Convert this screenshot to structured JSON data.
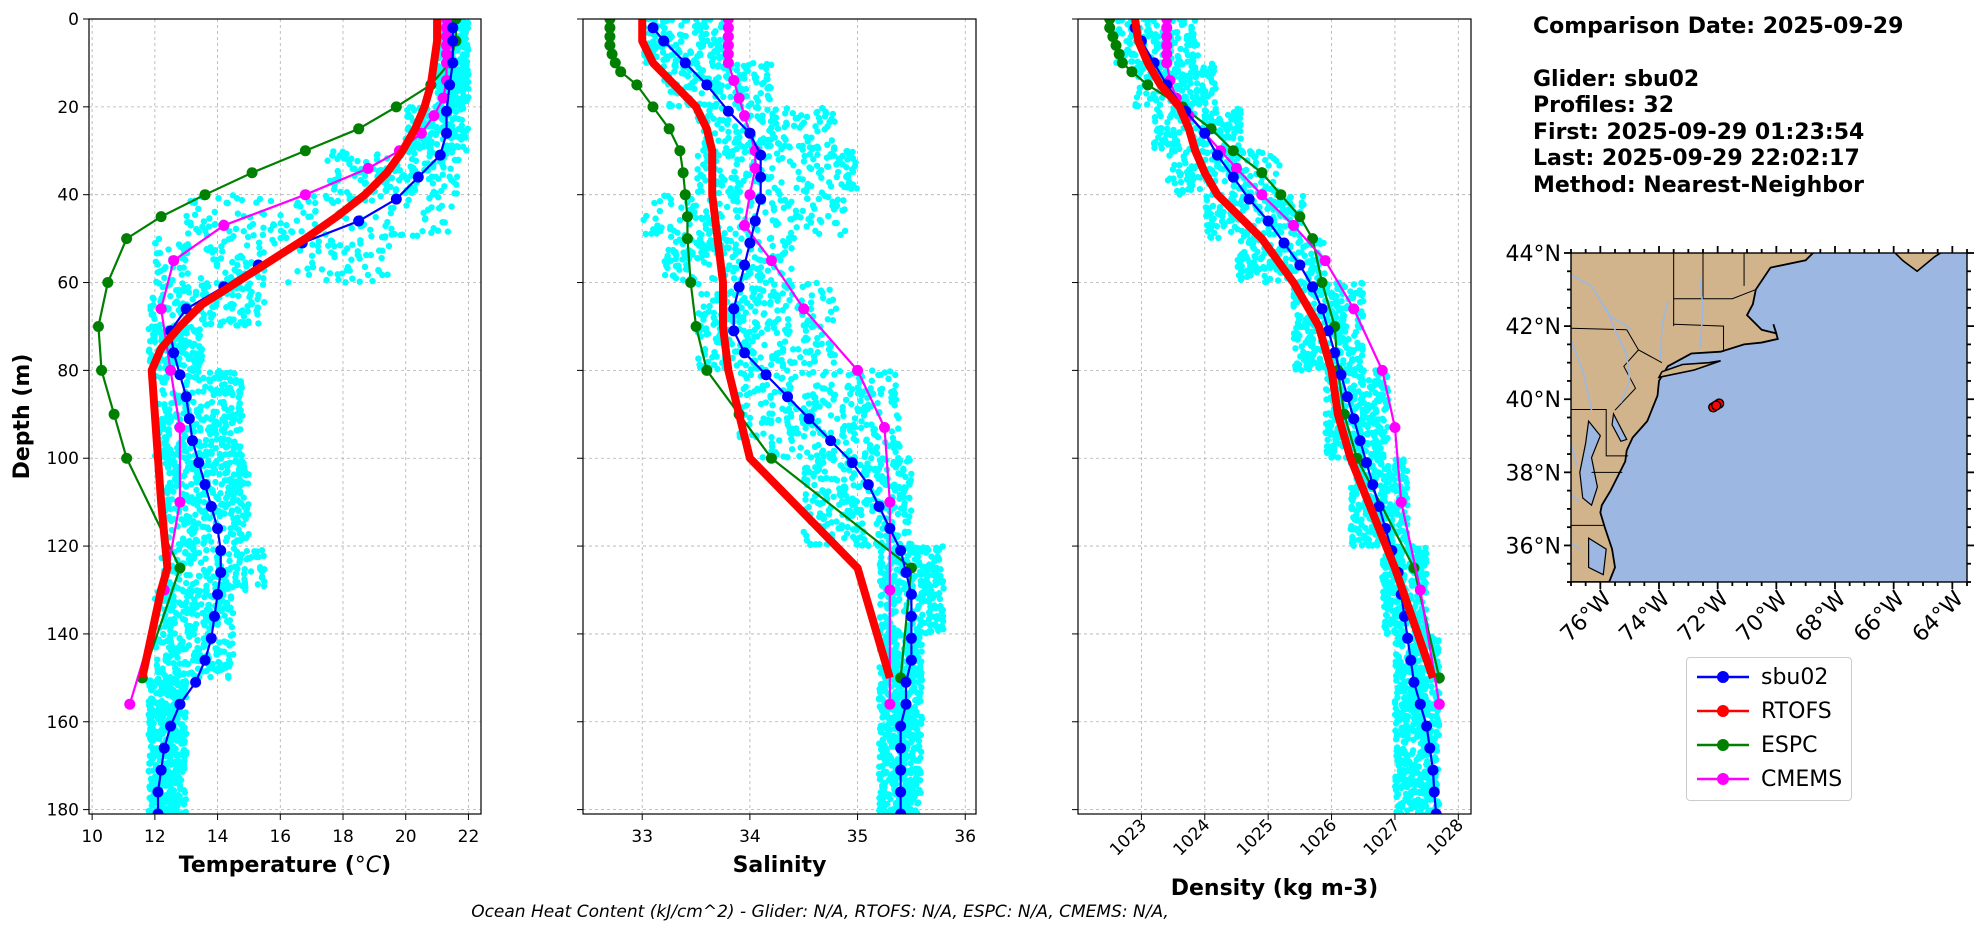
{
  "colors": {
    "glider_obs": "#00ffff",
    "sbu02": "#0000ff",
    "RTOFS": "#ff0000",
    "ESPC": "#008000",
    "CMEMS": "#ff00ff",
    "land": "#d2b48c",
    "ocean": "#9cb8e2"
  },
  "info": {
    "comparison_date": "Comparison Date: 2025-09-29",
    "glider": "Glider: sbu02",
    "profiles": "Profiles: 32",
    "first": "First: 2025-09-29 01:23:54",
    "last": "Last: 2025-09-29 22:02:17",
    "method": "Method: Nearest-Neighbor"
  },
  "footer": "Ocean Heat Content (kJ/cm^2) - Glider: N/A,  RTOFS: N/A,  ESPC: N/A,  CMEMS: N/A,",
  "legend": [
    {
      "name": "sbu02",
      "color": "#0000ff"
    },
    {
      "name": "RTOFS",
      "color": "#ff0000"
    },
    {
      "name": "ESPC",
      "color": "#008000"
    },
    {
      "name": "CMEMS",
      "color": "#ff00ff"
    }
  ],
  "chart_data": [
    {
      "type": "line",
      "xlabel": "Temperature (°C)",
      "ylabel": "Depth (m)",
      "xlim": [
        9.9,
        22.4
      ],
      "ylim": [
        181,
        0
      ],
      "xticks": [
        10,
        12,
        14,
        16,
        18,
        20,
        22
      ],
      "yticks": [
        0,
        20,
        40,
        60,
        80,
        100,
        120,
        140,
        160,
        180
      ],
      "grid": true,
      "scatter_cloud_ranges": [
        [
          0,
          20,
          21.0,
          22.0
        ],
        [
          20,
          30,
          20.0,
          22.0
        ],
        [
          30,
          40,
          17.5,
          21.8
        ],
        [
          40,
          50,
          13.0,
          21.5
        ],
        [
          50,
          60,
          12.0,
          19.5
        ],
        [
          60,
          70,
          11.8,
          15.5
        ],
        [
          70,
          80,
          11.8,
          13.5
        ],
        [
          80,
          100,
          12.0,
          14.8
        ],
        [
          100,
          120,
          12.3,
          15.0
        ],
        [
          120,
          130,
          12.2,
          15.5
        ],
        [
          130,
          150,
          12.0,
          14.5
        ],
        [
          150,
          182,
          11.8,
          13.0
        ]
      ],
      "series": [
        {
          "name": "sbu02",
          "depth": [
            2,
            5,
            10,
            15,
            21,
            26,
            31,
            36,
            41,
            46,
            51,
            56,
            61,
            66,
            71,
            76,
            81,
            86,
            91,
            96,
            101,
            106,
            111,
            116,
            121,
            126,
            131,
            136,
            141,
            146,
            151,
            156,
            161,
            166,
            171,
            176,
            181
          ],
          "values": [
            21.5,
            21.5,
            21.5,
            21.4,
            21.3,
            21.3,
            21.1,
            20.4,
            19.7,
            18.5,
            16.7,
            15.3,
            14.2,
            13.0,
            12.5,
            12.6,
            12.8,
            13.0,
            13.1,
            13.2,
            13.4,
            13.6,
            13.8,
            14.0,
            14.1,
            14.1,
            14.0,
            13.9,
            13.8,
            13.6,
            13.3,
            12.8,
            12.5,
            12.3,
            12.2,
            12.1,
            12.1
          ]
        },
        {
          "name": "RTOFS",
          "depth": [
            0,
            5,
            10,
            15,
            20,
            25,
            30,
            35,
            40,
            45,
            50,
            55,
            60,
            65,
            70,
            75,
            80,
            90,
            100,
            110,
            125,
            130,
            150
          ],
          "values": [
            21.0,
            21.0,
            20.9,
            20.8,
            20.6,
            20.3,
            19.9,
            19.4,
            18.7,
            17.8,
            16.8,
            15.7,
            14.6,
            13.5,
            12.8,
            12.2,
            11.9,
            12.0,
            12.1,
            12.2,
            12.4,
            12.2,
            11.6
          ]
        },
        {
          "name": "ESPC",
          "depth": [
            0,
            5,
            10,
            15,
            20,
            25,
            30,
            35,
            40,
            45,
            50,
            60,
            70,
            80,
            90,
            100,
            125,
            150
          ],
          "values": [
            21.6,
            21.6,
            21.4,
            20.8,
            19.7,
            18.5,
            16.8,
            15.1,
            13.6,
            12.2,
            11.1,
            10.5,
            10.2,
            10.3,
            10.7,
            11.1,
            12.8,
            11.6
          ]
        },
        {
          "name": "CMEMS",
          "depth": [
            0,
            2,
            4,
            6,
            8,
            10,
            14,
            18,
            22,
            26,
            30,
            34,
            40,
            47,
            55,
            66,
            80,
            93,
            110,
            130,
            156
          ],
          "values": [
            21.3,
            21.3,
            21.3,
            21.3,
            21.3,
            21.3,
            21.3,
            21.2,
            20.9,
            20.5,
            19.8,
            18.8,
            16.8,
            14.2,
            12.6,
            12.2,
            12.5,
            12.8,
            12.8,
            12.3,
            11.2
          ]
        }
      ]
    },
    {
      "type": "line",
      "xlabel": "Salinity",
      "xlim": [
        32.45,
        36.1
      ],
      "ylim": [
        181,
        0
      ],
      "xticks": [
        33,
        34,
        35,
        36
      ],
      "grid": true,
      "scatter_cloud_ranges": [
        [
          0,
          10,
          33.0,
          33.8
        ],
        [
          10,
          20,
          33.2,
          34.2
        ],
        [
          20,
          30,
          33.5,
          34.8
        ],
        [
          30,
          40,
          33.5,
          35.0
        ],
        [
          40,
          50,
          33.0,
          34.9
        ],
        [
          50,
          60,
          33.2,
          34.4
        ],
        [
          60,
          80,
          33.5,
          34.8
        ],
        [
          80,
          100,
          33.9,
          35.4
        ],
        [
          100,
          120,
          34.5,
          35.5
        ],
        [
          120,
          140,
          35.2,
          35.8
        ],
        [
          140,
          182,
          35.2,
          35.6
        ]
      ],
      "series": [
        {
          "name": "sbu02",
          "depth": [
            2,
            5,
            10,
            15,
            21,
            26,
            31,
            36,
            41,
            46,
            51,
            56,
            61,
            66,
            71,
            76,
            81,
            86,
            91,
            96,
            101,
            106,
            111,
            116,
            121,
            126,
            131,
            136,
            141,
            146,
            151,
            156,
            161,
            166,
            171,
            176,
            181
          ],
          "values": [
            33.1,
            33.2,
            33.4,
            33.6,
            33.8,
            34.0,
            34.1,
            34.1,
            34.1,
            34.05,
            34.0,
            33.95,
            33.9,
            33.85,
            33.85,
            33.95,
            34.15,
            34.35,
            34.55,
            34.75,
            34.95,
            35.1,
            35.2,
            35.3,
            35.4,
            35.45,
            35.5,
            35.5,
            35.5,
            35.5,
            35.45,
            35.45,
            35.4,
            35.4,
            35.4,
            35.4,
            35.4
          ]
        },
        {
          "name": "RTOFS",
          "depth": [
            0,
            5,
            10,
            15,
            20,
            25,
            30,
            35,
            40,
            50,
            60,
            70,
            80,
            90,
            100,
            125,
            150
          ],
          "values": [
            33.0,
            33.0,
            33.1,
            33.3,
            33.5,
            33.6,
            33.65,
            33.65,
            33.65,
            33.7,
            33.75,
            33.75,
            33.8,
            33.9,
            34.0,
            35.0,
            35.3
          ]
        },
        {
          "name": "ESPC",
          "depth": [
            0,
            2,
            4,
            6,
            8,
            10,
            12,
            15,
            20,
            25,
            30,
            35,
            40,
            45,
            50,
            60,
            70,
            80,
            90,
            100,
            125,
            150
          ],
          "values": [
            32.7,
            32.7,
            32.7,
            32.7,
            32.72,
            32.75,
            32.8,
            32.95,
            33.1,
            33.25,
            33.35,
            33.38,
            33.4,
            33.42,
            33.42,
            33.45,
            33.5,
            33.6,
            33.9,
            34.2,
            35.5,
            35.4
          ]
        },
        {
          "name": "CMEMS",
          "depth": [
            0,
            2,
            4,
            6,
            8,
            10,
            14,
            18,
            22,
            26,
            30,
            34,
            40,
            47,
            55,
            66,
            80,
            93,
            110,
            130,
            156
          ],
          "values": [
            33.8,
            33.8,
            33.8,
            33.8,
            33.8,
            33.8,
            33.85,
            33.9,
            33.95,
            34.0,
            34.05,
            34.05,
            34.0,
            33.95,
            34.2,
            34.5,
            35.0,
            35.25,
            35.3,
            35.3,
            35.3
          ]
        }
      ]
    },
    {
      "type": "line",
      "xlabel": "Density (kg m-3)",
      "xlim": [
        1022.0,
        1028.2
      ],
      "ylim": [
        181,
        0
      ],
      "xticks": [
        1023,
        1024,
        1025,
        1026,
        1027,
        1028
      ],
      "grid": true,
      "scatter_cloud_ranges": [
        [
          0,
          10,
          1022.6,
          1023.9
        ],
        [
          10,
          20,
          1022.9,
          1024.2
        ],
        [
          20,
          30,
          1023.2,
          1024.6
        ],
        [
          30,
          40,
          1023.4,
          1025.2
        ],
        [
          40,
          50,
          1024.0,
          1025.6
        ],
        [
          50,
          60,
          1024.5,
          1025.9
        ],
        [
          60,
          80,
          1025.4,
          1026.5
        ],
        [
          80,
          100,
          1025.9,
          1026.9
        ],
        [
          100,
          120,
          1026.3,
          1027.2
        ],
        [
          120,
          140,
          1026.8,
          1027.5
        ],
        [
          140,
          182,
          1027.0,
          1027.7
        ]
      ],
      "series": [
        {
          "name": "sbu02",
          "depth": [
            2,
            5,
            10,
            15,
            21,
            26,
            31,
            36,
            41,
            46,
            51,
            56,
            61,
            66,
            71,
            76,
            81,
            86,
            91,
            96,
            101,
            106,
            111,
            116,
            121,
            126,
            131,
            136,
            141,
            146,
            151,
            156,
            161,
            166,
            171,
            176,
            181
          ],
          "values": [
            1022.9,
            1023.0,
            1023.2,
            1023.4,
            1023.7,
            1024.0,
            1024.2,
            1024.45,
            1024.7,
            1025.0,
            1025.25,
            1025.5,
            1025.7,
            1025.85,
            1025.95,
            1026.05,
            1026.15,
            1026.25,
            1026.35,
            1026.45,
            1026.55,
            1026.65,
            1026.75,
            1026.85,
            1026.95,
            1027.05,
            1027.1,
            1027.15,
            1027.2,
            1027.25,
            1027.3,
            1027.4,
            1027.5,
            1027.55,
            1027.6,
            1027.62,
            1027.65
          ]
        },
        {
          "name": "RTOFS",
          "depth": [
            0,
            5,
            10,
            15,
            20,
            25,
            30,
            35,
            40,
            50,
            60,
            70,
            80,
            90,
            100,
            125,
            150
          ],
          "values": [
            1022.9,
            1022.95,
            1023.1,
            1023.3,
            1023.6,
            1023.75,
            1023.85,
            1024.0,
            1024.2,
            1024.9,
            1025.4,
            1025.8,
            1026.0,
            1026.1,
            1026.3,
            1027.0,
            1027.6
          ]
        },
        {
          "name": "ESPC",
          "depth": [
            0,
            2,
            4,
            6,
            8,
            10,
            12,
            15,
            20,
            25,
            30,
            35,
            40,
            45,
            50,
            60,
            70,
            80,
            90,
            100,
            125,
            150
          ],
          "values": [
            1022.5,
            1022.5,
            1022.55,
            1022.6,
            1022.65,
            1022.7,
            1022.85,
            1023.1,
            1023.65,
            1024.1,
            1024.45,
            1024.9,
            1025.2,
            1025.5,
            1025.7,
            1025.85,
            1026.05,
            1026.1,
            1026.2,
            1026.4,
            1027.3,
            1027.7
          ]
        },
        {
          "name": "CMEMS",
          "depth": [
            0,
            2,
            4,
            6,
            8,
            10,
            14,
            18,
            22,
            26,
            30,
            34,
            40,
            47,
            55,
            66,
            80,
            93,
            110,
            130,
            156
          ],
          "values": [
            1023.4,
            1023.4,
            1023.4,
            1023.4,
            1023.4,
            1023.4,
            1023.45,
            1023.55,
            1023.75,
            1024.0,
            1024.25,
            1024.5,
            1024.9,
            1025.4,
            1025.9,
            1026.35,
            1026.8,
            1027.0,
            1027.1,
            1027.4,
            1027.7
          ]
        }
      ]
    },
    {
      "type": "map",
      "lon_range": [
        -77.0,
        -63.5
      ],
      "lat_range": [
        35.0,
        44.0
      ],
      "lat_ticks": [
        "44°N",
        "42°N",
        "40°N",
        "38°N",
        "36°N"
      ],
      "lat_tick_values": [
        44,
        42,
        40,
        38,
        36
      ],
      "lon_ticks": [
        "76°W",
        "74°W",
        "72°W",
        "70°W",
        "68°W",
        "66°W",
        "64°W"
      ],
      "lon_tick_values": [
        -76,
        -74,
        -72,
        -70,
        -68,
        -66,
        -64
      ],
      "glider_positions": [
        [
          -72.15,
          39.78
        ],
        [
          -71.95,
          39.88
        ],
        [
          -72.05,
          39.83
        ]
      ]
    }
  ]
}
